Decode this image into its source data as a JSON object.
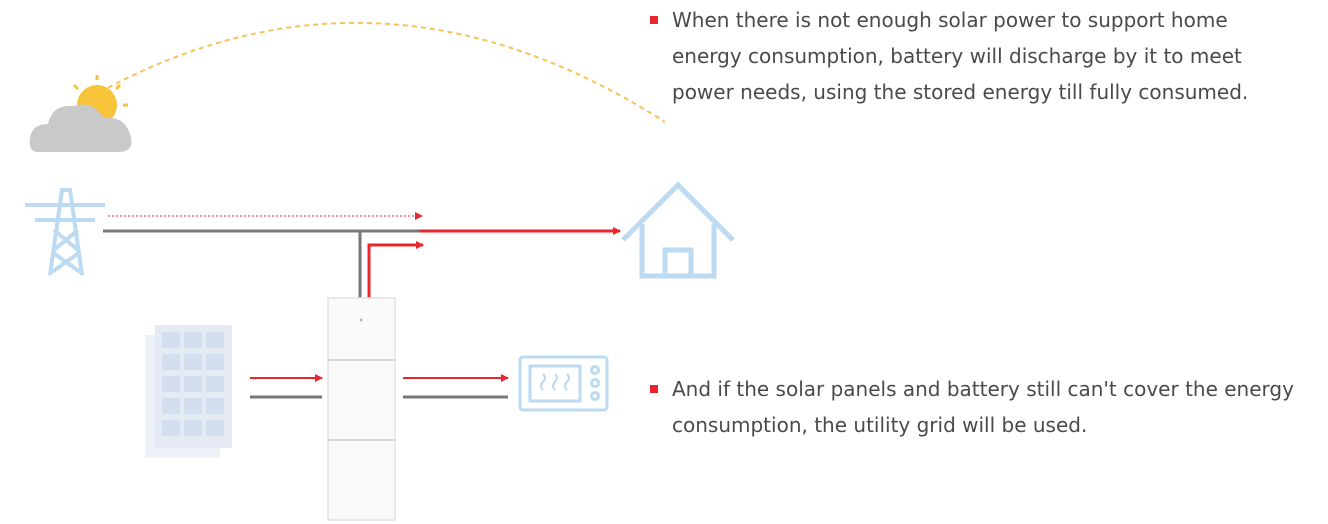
{
  "bullets": [
    "When there is not enough solar power to support home energy consumption, battery will discharge by it to meet power needs, using the stored energy till fully consumed.",
    "And if the solar panels and battery still can't cover the energy consumption, the utility grid will be used."
  ]
}
